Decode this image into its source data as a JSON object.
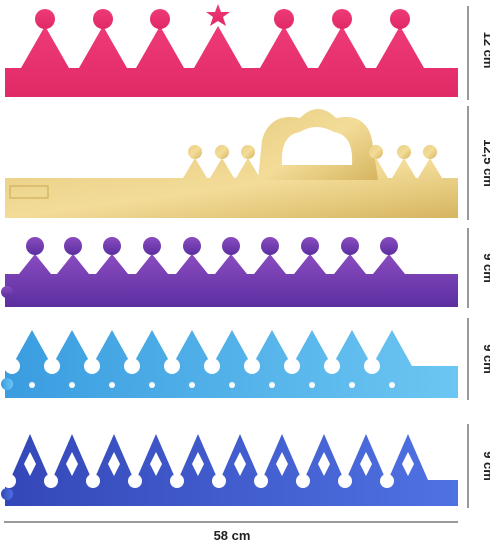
{
  "heights": [
    "12 cm",
    "12,5 cm",
    "9 cm",
    "9 cm",
    "9 cm"
  ],
  "width": "58 cm"
}
